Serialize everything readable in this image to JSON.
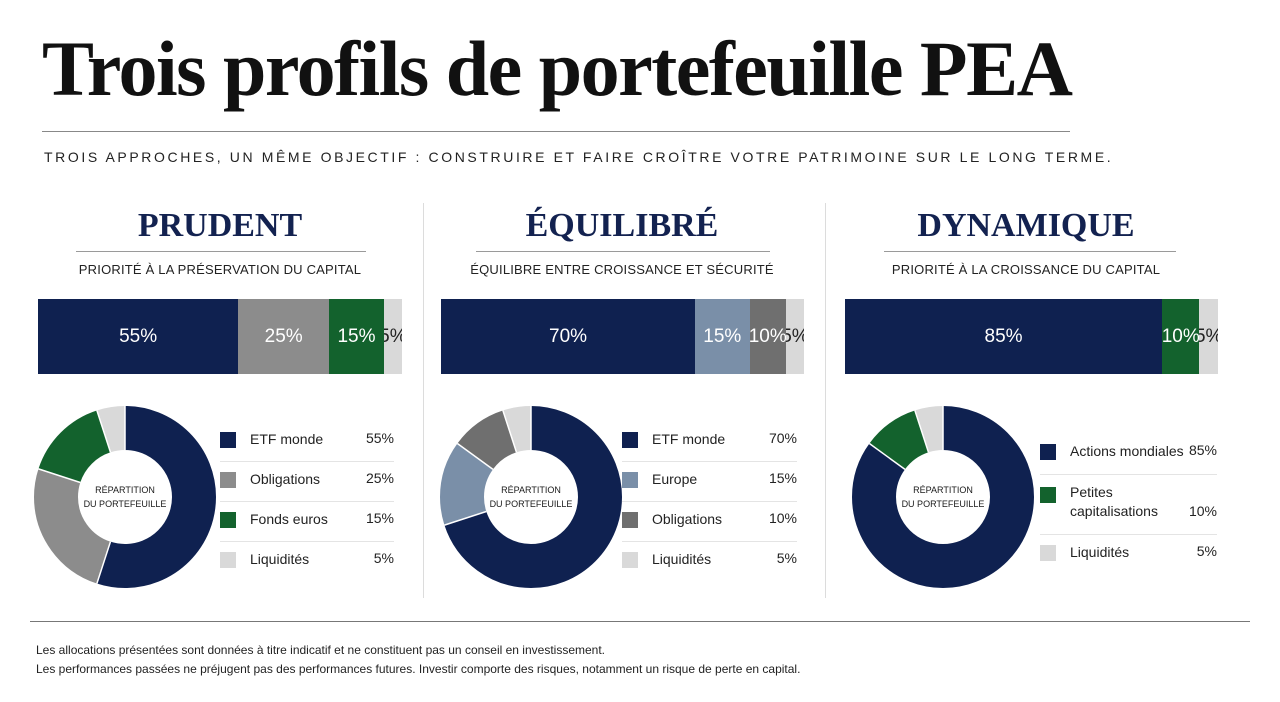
{
  "title": "Trois profils de portefeuille PEA",
  "subtitle": "TROIS APPROCHES, UN MÊME OBJECTIF : CONSTRUIRE ET FAIRE CROÎTRE VOTRE PATRIMOINE SUR LE LONG TERME.",
  "donut_center_label": [
    "RÉPARTITION",
    "DU PORTEFEUILLE"
  ],
  "disclaimer": [
    "Les allocations présentées sont données à titre indicatif et ne constituent pas un conseil en investissement.",
    "Les performances passées ne préjugent pas des performances futures. Investir comporte des risques, notamment un risque de perte en capital."
  ],
  "colors": {
    "navy": "#0f2150",
    "grey": "#8c8c8c",
    "green": "#13622d",
    "light_grey": "#d9d9d9",
    "steel_blue": "#7a8fa8",
    "dark_grey": "#6f6f6f"
  },
  "chart_data": [
    {
      "type": "bar",
      "variant": "100% stacked horizontal bar + donut",
      "title": "PRUDENT",
      "subtitle": "PRIORITÉ À LA PRÉSERVATION DU CAPITAL",
      "categories": [
        "ETF monde",
        "Obligations",
        "Fonds euros",
        "Liquidités"
      ],
      "values": [
        55,
        25,
        15,
        5
      ],
      "value_labels": [
        "55%",
        "25%",
        "15%",
        "5%"
      ],
      "colors": [
        "#0f2150",
        "#8c8c8c",
        "#13622d",
        "#d9d9d9"
      ],
      "unit": "%"
    },
    {
      "type": "bar",
      "variant": "100% stacked horizontal bar + donut",
      "title": "ÉQUILIBRÉ",
      "subtitle": "ÉQUILIBRE ENTRE CROISSANCE ET SÉCURITÉ",
      "categories": [
        "ETF monde",
        "Europe",
        "Obligations",
        "Liquidités"
      ],
      "values": [
        70,
        15,
        10,
        5
      ],
      "value_labels": [
        "70%",
        "15%",
        "10%",
        "5%"
      ],
      "colors": [
        "#0f2150",
        "#7a8fa8",
        "#6f6f6f",
        "#d9d9d9"
      ],
      "unit": "%"
    },
    {
      "type": "bar",
      "variant": "100% stacked horizontal bar + donut",
      "title": "DYNAMIQUE",
      "subtitle": "PRIORITÉ À LA CROISSANCE DU CAPITAL",
      "categories": [
        "Actions mondiales",
        "Petites capitalisations",
        "Liquidités"
      ],
      "values": [
        85,
        10,
        5
      ],
      "value_labels": [
        "85%",
        "10%",
        "5%"
      ],
      "colors": [
        "#0f2150",
        "#13622d",
        "#d9d9d9"
      ],
      "unit": "%"
    }
  ]
}
